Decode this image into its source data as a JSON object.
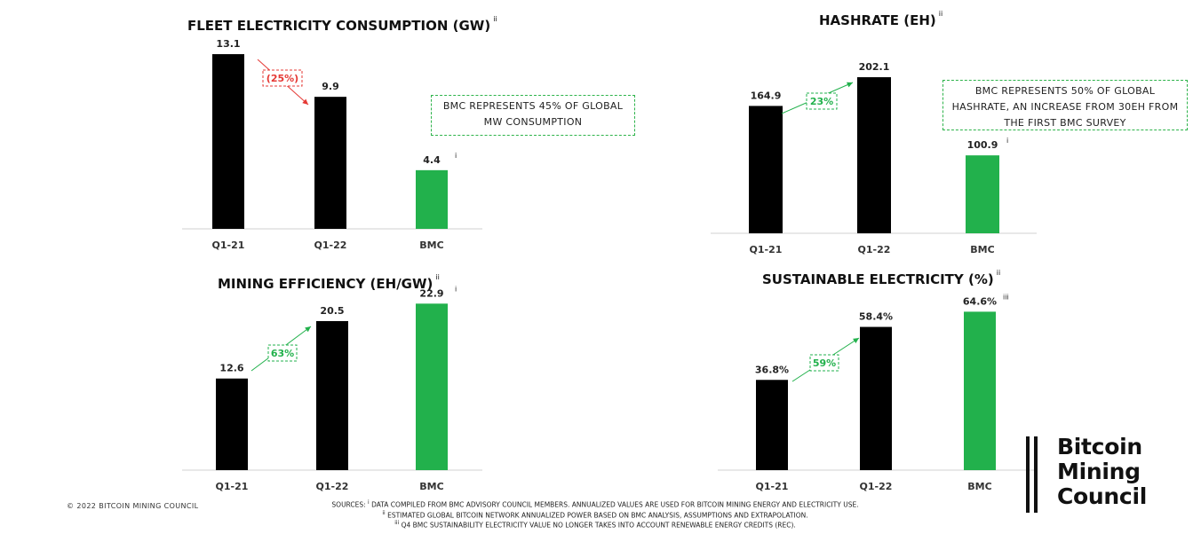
{
  "colors": {
    "black_bar": "#000000",
    "bmc_bar": "#22b14c",
    "decrease": "#e53935",
    "increase": "#22b14c",
    "axis": "#d0d0d0"
  },
  "charts": [
    {
      "id": "fleet",
      "title": "FLEET ELECTRICITY CONSUMPTION (GW)",
      "title_sup": "ii",
      "note": "BMC REPRESENTS 45% OF GLOBAL MW CONSUMPTION",
      "change_label": "(25%)",
      "change_direction": "down",
      "bmc_sup": "i"
    },
    {
      "id": "hashrate",
      "title": "HASHRATE (EH)",
      "title_sup": "ii",
      "note": "BMC REPRESENTS 50% OF GLOBAL HASHRATE, AN INCREASE FROM 30EH FROM THE FIRST BMC SURVEY",
      "change_label": "23%",
      "change_direction": "up",
      "bmc_sup": "i"
    },
    {
      "id": "efficiency",
      "title": "MINING EFFICIENCY (EH/GW)",
      "title_sup": "ii",
      "note": "",
      "change_label": "63%",
      "change_direction": "up",
      "bmc_sup": "i"
    },
    {
      "id": "sustainable",
      "title": "SUSTAINABLE ELECTRICITY (%)",
      "title_sup": "ii",
      "note": "",
      "change_label": "59%",
      "change_direction": "up",
      "bmc_sup": "iii"
    }
  ],
  "chart_data": [
    {
      "type": "bar",
      "title": "FLEET ELECTRICITY CONSUMPTION (GW)",
      "categories": [
        "Q1-21",
        "Q1-22",
        "BMC"
      ],
      "values": [
        13.1,
        9.9,
        4.4
      ],
      "labels": [
        "13.1",
        "9.9",
        "4.4"
      ],
      "ylim": [
        0,
        14.5
      ]
    },
    {
      "type": "bar",
      "title": "HASHRATE (EH)",
      "categories": [
        "Q1-21",
        "Q1-22",
        "BMC"
      ],
      "values": [
        164.9,
        202.1,
        100.9
      ],
      "labels": [
        "164.9",
        "202.1",
        "100.9"
      ],
      "ylim": [
        0,
        232
      ]
    },
    {
      "type": "bar",
      "title": "MINING EFFICIENCY (EH/GW)",
      "categories": [
        "Q1-21",
        "Q1-22",
        "BMC"
      ],
      "values": [
        12.6,
        20.5,
        22.9
      ],
      "labels": [
        "12.6",
        "20.5",
        "22.9"
      ],
      "ylim": [
        0,
        24.4
      ]
    },
    {
      "type": "bar",
      "title": "SUSTAINABLE ELECTRICITY (%)",
      "categories": [
        "Q1-21",
        "Q1-22",
        "BMC"
      ],
      "values": [
        36.8,
        58.4,
        64.6
      ],
      "labels": [
        "36.8%",
        "58.4%",
        "64.6%"
      ],
      "ylim": [
        0,
        68
      ]
    }
  ],
  "footer": {
    "copyright": "© 2022 BITCOIN MINING COUNCIL",
    "sources_line1": "SOURCES: ",
    "sources_sup1": "i",
    "sources_text1": " DATA COMPILED FROM BMC ADVISORY COUNCIL MEMBERS. ANNUALIZED VALUES ARE USED FOR BITCOIN MINING ENERGY AND ELECTRICITY USE.",
    "sources_sup2": "ii",
    "sources_text2": " ESTIMATED GLOBAL BITCOIN NETWORK ANNUALIZED POWER BASED ON BMC ANALYSIS, ASSUMPTIONS AND EXTRAPOLATION.",
    "sources_sup3": "iii",
    "sources_text3": " Q4 BMC SUSTAINABILITY ELECTRICITY VALUE NO LONGER TAKES INTO ACCOUNT RENEWABLE ENERGY CREDITS (REC)."
  },
  "logo": {
    "line1": "Bitcoin",
    "line2": "Mining",
    "line3": "Council"
  }
}
